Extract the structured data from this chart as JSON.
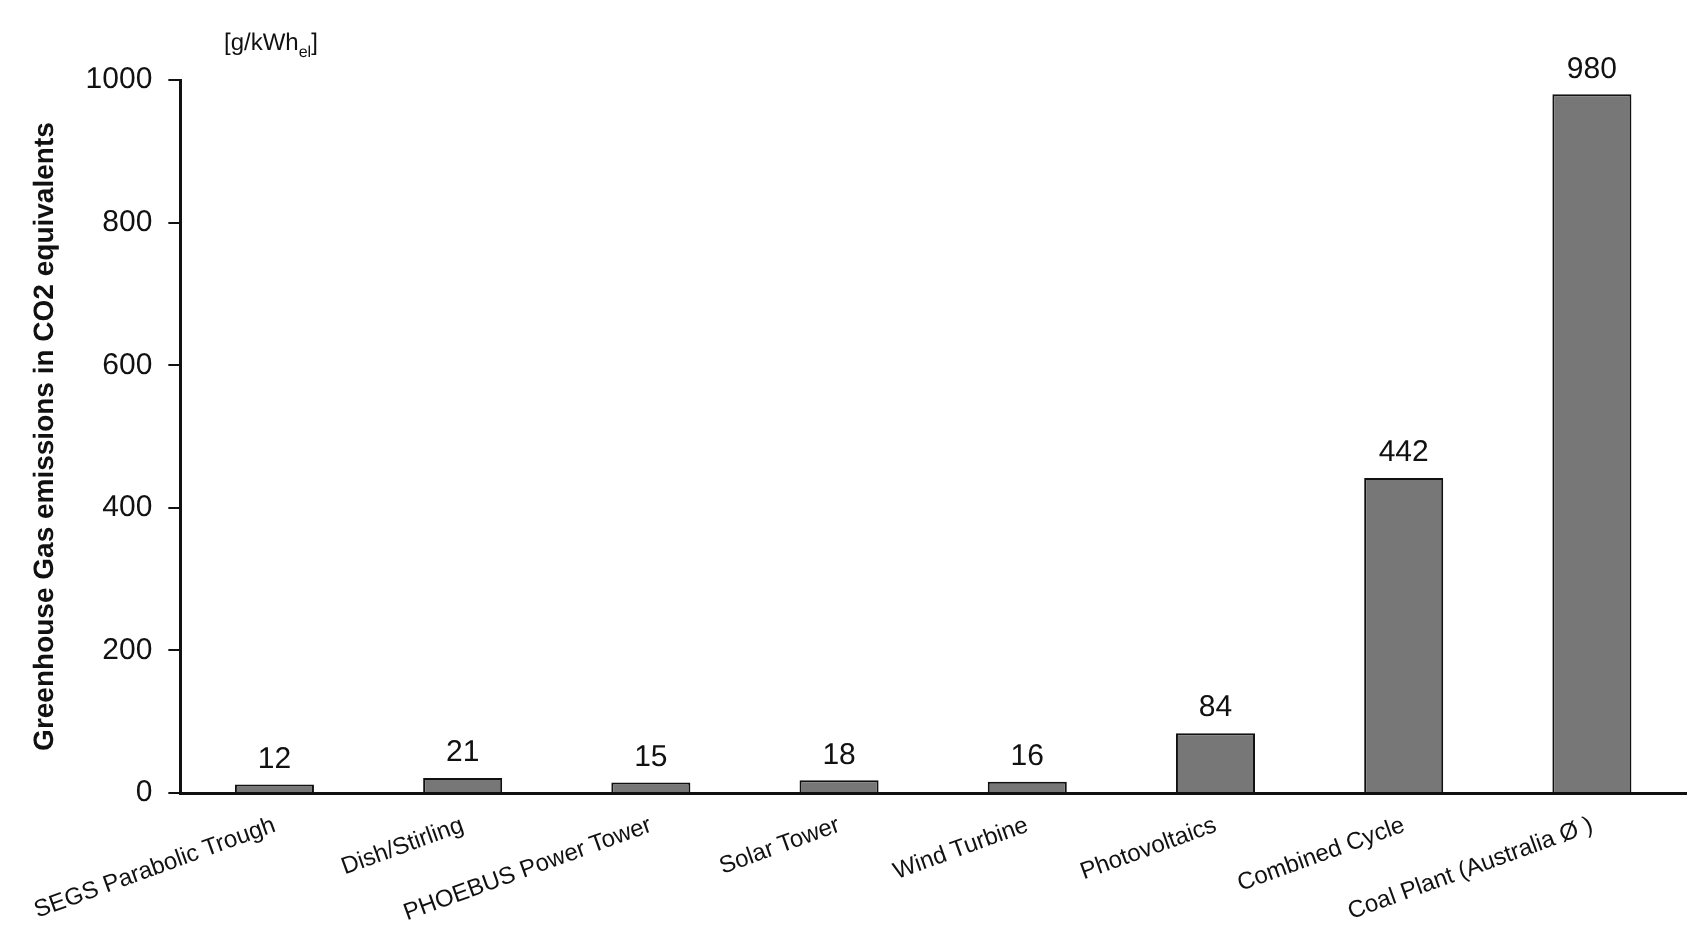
{
  "chart_data": {
    "type": "bar",
    "ylabel": "Greenhouse Gas emissions in CO2 equivalents",
    "annotations": [
      "[g/kWh$_{el}$]"
    ],
    "categories": [
      "SEGS Parabolic Trough",
      "Dish/Stirling",
      "PHOEBUS Power Tower",
      "Solar Tower",
      "Wind Turbine",
      "Photovoltaics",
      "Combined Cycle",
      "Coal Plant (Australia Ø )"
    ],
    "values": [
      12,
      21,
      15,
      18,
      16,
      84,
      442,
      980
    ],
    "color": "#777777",
    "ylim": [
      0,
      1000
    ],
    "yticks": [
      0,
      200,
      400,
      600,
      800,
      1000
    ],
    "grid": false,
    "data_labels": true
  }
}
